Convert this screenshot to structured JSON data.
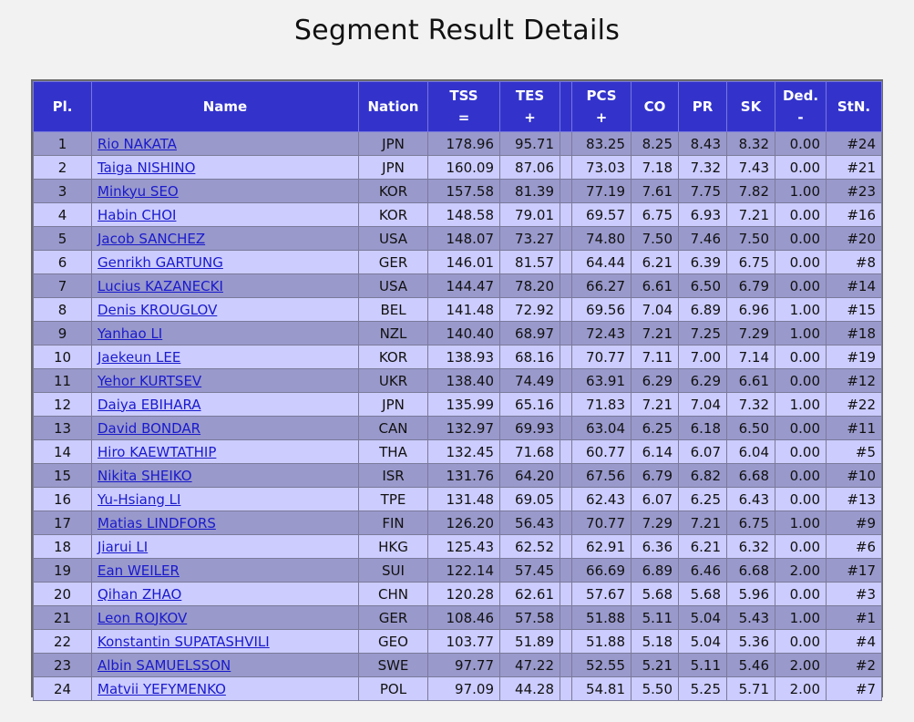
{
  "page_title": "Segment Result Details",
  "columns": [
    {
      "key": "pl",
      "label_top": "Pl.",
      "label_bottom": ""
    },
    {
      "key": "name",
      "label_top": "Name",
      "label_bottom": ""
    },
    {
      "key": "nation",
      "label_top": "Nation",
      "label_bottom": ""
    },
    {
      "key": "tss",
      "label_top": "TSS",
      "label_bottom": "="
    },
    {
      "key": "tes",
      "label_top": "TES",
      "label_bottom": "+"
    },
    {
      "key": "gap",
      "label_top": "",
      "label_bottom": ""
    },
    {
      "key": "pcs",
      "label_top": "PCS",
      "label_bottom": "+"
    },
    {
      "key": "co",
      "label_top": "CO",
      "label_bottom": ""
    },
    {
      "key": "pr",
      "label_top": "PR",
      "label_bottom": ""
    },
    {
      "key": "sk",
      "label_top": "SK",
      "label_bottom": ""
    },
    {
      "key": "ded",
      "label_top": "Ded.",
      "label_bottom": "-"
    },
    {
      "key": "stn",
      "label_top": "StN.",
      "label_bottom": ""
    }
  ],
  "rows": [
    {
      "pl": "1",
      "name": "Rio NAKATA",
      "nation": "JPN",
      "tss": "178.96",
      "tes": "95.71",
      "pcs": "83.25",
      "co": "8.25",
      "pr": "8.43",
      "sk": "8.32",
      "ded": "0.00",
      "stn": "#24"
    },
    {
      "pl": "2",
      "name": "Taiga NISHINO",
      "nation": "JPN",
      "tss": "160.09",
      "tes": "87.06",
      "pcs": "73.03",
      "co": "7.18",
      "pr": "7.32",
      "sk": "7.43",
      "ded": "0.00",
      "stn": "#21"
    },
    {
      "pl": "3",
      "name": "Minkyu SEO",
      "nation": "KOR",
      "tss": "157.58",
      "tes": "81.39",
      "pcs": "77.19",
      "co": "7.61",
      "pr": "7.75",
      "sk": "7.82",
      "ded": "1.00",
      "stn": "#23"
    },
    {
      "pl": "4",
      "name": "Habin CHOI",
      "nation": "KOR",
      "tss": "148.58",
      "tes": "79.01",
      "pcs": "69.57",
      "co": "6.75",
      "pr": "6.93",
      "sk": "7.21",
      "ded": "0.00",
      "stn": "#16"
    },
    {
      "pl": "5",
      "name": "Jacob SANCHEZ",
      "nation": "USA",
      "tss": "148.07",
      "tes": "73.27",
      "pcs": "74.80",
      "co": "7.50",
      "pr": "7.46",
      "sk": "7.50",
      "ded": "0.00",
      "stn": "#20"
    },
    {
      "pl": "6",
      "name": "Genrikh GARTUNG",
      "nation": "GER",
      "tss": "146.01",
      "tes": "81.57",
      "pcs": "64.44",
      "co": "6.21",
      "pr": "6.39",
      "sk": "6.75",
      "ded": "0.00",
      "stn": "#8"
    },
    {
      "pl": "7",
      "name": "Lucius KAZANECKI",
      "nation": "USA",
      "tss": "144.47",
      "tes": "78.20",
      "pcs": "66.27",
      "co": "6.61",
      "pr": "6.50",
      "sk": "6.79",
      "ded": "0.00",
      "stn": "#14"
    },
    {
      "pl": "8",
      "name": "Denis KROUGLOV",
      "nation": "BEL",
      "tss": "141.48",
      "tes": "72.92",
      "pcs": "69.56",
      "co": "7.04",
      "pr": "6.89",
      "sk": "6.96",
      "ded": "1.00",
      "stn": "#15"
    },
    {
      "pl": "9",
      "name": "Yanhao LI",
      "nation": "NZL",
      "tss": "140.40",
      "tes": "68.97",
      "pcs": "72.43",
      "co": "7.21",
      "pr": "7.25",
      "sk": "7.29",
      "ded": "1.00",
      "stn": "#18"
    },
    {
      "pl": "10",
      "name": "Jaekeun LEE",
      "nation": "KOR",
      "tss": "138.93",
      "tes": "68.16",
      "pcs": "70.77",
      "co": "7.11",
      "pr": "7.00",
      "sk": "7.14",
      "ded": "0.00",
      "stn": "#19"
    },
    {
      "pl": "11",
      "name": "Yehor KURTSEV",
      "nation": "UKR",
      "tss": "138.40",
      "tes": "74.49",
      "pcs": "63.91",
      "co": "6.29",
      "pr": "6.29",
      "sk": "6.61",
      "ded": "0.00",
      "stn": "#12"
    },
    {
      "pl": "12",
      "name": "Daiya EBIHARA",
      "nation": "JPN",
      "tss": "135.99",
      "tes": "65.16",
      "pcs": "71.83",
      "co": "7.21",
      "pr": "7.04",
      "sk": "7.32",
      "ded": "1.00",
      "stn": "#22"
    },
    {
      "pl": "13",
      "name": "David BONDAR",
      "nation": "CAN",
      "tss": "132.97",
      "tes": "69.93",
      "pcs": "63.04",
      "co": "6.25",
      "pr": "6.18",
      "sk": "6.50",
      "ded": "0.00",
      "stn": "#11"
    },
    {
      "pl": "14",
      "name": "Hiro KAEWTATHIP",
      "nation": "THA",
      "tss": "132.45",
      "tes": "71.68",
      "pcs": "60.77",
      "co": "6.14",
      "pr": "6.07",
      "sk": "6.04",
      "ded": "0.00",
      "stn": "#5"
    },
    {
      "pl": "15",
      "name": "Nikita SHEIKO",
      "nation": "ISR",
      "tss": "131.76",
      "tes": "64.20",
      "pcs": "67.56",
      "co": "6.79",
      "pr": "6.82",
      "sk": "6.68",
      "ded": "0.00",
      "stn": "#10"
    },
    {
      "pl": "16",
      "name": "Yu-Hsiang LI",
      "nation": "TPE",
      "tss": "131.48",
      "tes": "69.05",
      "pcs": "62.43",
      "co": "6.07",
      "pr": "6.25",
      "sk": "6.43",
      "ded": "0.00",
      "stn": "#13"
    },
    {
      "pl": "17",
      "name": "Matias LINDFORS",
      "nation": "FIN",
      "tss": "126.20",
      "tes": "56.43",
      "pcs": "70.77",
      "co": "7.29",
      "pr": "7.21",
      "sk": "6.75",
      "ded": "1.00",
      "stn": "#9"
    },
    {
      "pl": "18",
      "name": "Jiarui LI",
      "nation": "HKG",
      "tss": "125.43",
      "tes": "62.52",
      "pcs": "62.91",
      "co": "6.36",
      "pr": "6.21",
      "sk": "6.32",
      "ded": "0.00",
      "stn": "#6"
    },
    {
      "pl": "19",
      "name": "Ean WEILER",
      "nation": "SUI",
      "tss": "122.14",
      "tes": "57.45",
      "pcs": "66.69",
      "co": "6.89",
      "pr": "6.46",
      "sk": "6.68",
      "ded": "2.00",
      "stn": "#17"
    },
    {
      "pl": "20",
      "name": "Qihan ZHAO",
      "nation": "CHN",
      "tss": "120.28",
      "tes": "62.61",
      "pcs": "57.67",
      "co": "5.68",
      "pr": "5.68",
      "sk": "5.96",
      "ded": "0.00",
      "stn": "#3"
    },
    {
      "pl": "21",
      "name": "Leon ROJKOV",
      "nation": "GER",
      "tss": "108.46",
      "tes": "57.58",
      "pcs": "51.88",
      "co": "5.11",
      "pr": "5.04",
      "sk": "5.43",
      "ded": "1.00",
      "stn": "#1"
    },
    {
      "pl": "22",
      "name": "Konstantin SUPATASHVILI",
      "nation": "GEO",
      "tss": "103.77",
      "tes": "51.89",
      "pcs": "51.88",
      "co": "5.18",
      "pr": "5.04",
      "sk": "5.36",
      "ded": "0.00",
      "stn": "#4"
    },
    {
      "pl": "23",
      "name": "Albin SAMUELSSON",
      "nation": "SWE",
      "tss": "97.77",
      "tes": "47.22",
      "pcs": "52.55",
      "co": "5.21",
      "pr": "5.11",
      "sk": "5.46",
      "ded": "2.00",
      "stn": "#2"
    },
    {
      "pl": "24",
      "name": "Matvii YEFYMENKO",
      "nation": "POL",
      "tss": "97.09",
      "tes": "44.28",
      "pcs": "54.81",
      "co": "5.50",
      "pr": "5.25",
      "sk": "5.71",
      "ded": "2.00",
      "stn": "#7"
    }
  ],
  "colors": {
    "header_bg": "#3333cc",
    "row_odd": "#9999cc",
    "row_even": "#ccccff",
    "link": "#1a1acc"
  }
}
